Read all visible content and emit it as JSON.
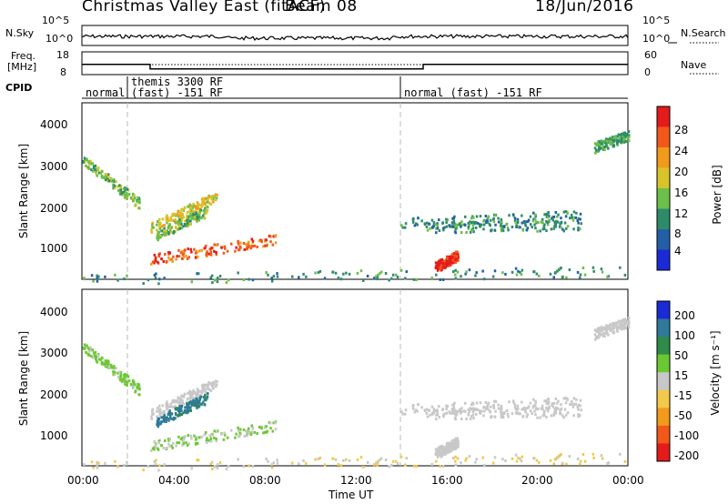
{
  "header": {
    "title": "Christmas Valley East (fitACF)",
    "beam": "Beam 08",
    "date": "18/Jun/2016"
  },
  "top_panels": {
    "nsky_label": "N.Sky",
    "nsky_ticks": [
      "10^5",
      "10^0"
    ],
    "nsearch_label": "N.Search",
    "nsearch_ticks": [
      "10^5",
      "10^0"
    ],
    "freq_label_1": "Freq.",
    "freq_label_2": "[MHz]",
    "freq_ticks": [
      "18",
      "8"
    ],
    "nave_label": "Nave",
    "nave_ticks": [
      "60",
      "0"
    ],
    "cpid_label": "CPID",
    "cpid_segments": [
      {
        "text_1": "normal",
        "text_2": ""
      },
      {
        "text_1": "themis 3300 RF",
        "text_2": "(fast) -151 RF"
      },
      {
        "text_1": "normal (fast) -151 RF",
        "text_2": ""
      }
    ]
  },
  "power_panel": {
    "ylabel": "Slant Range [km]",
    "yticks": [
      "4000",
      "3000",
      "2000",
      "1000"
    ],
    "colorbar_label": "Power [dB]",
    "colorbar_ticks": [
      "28",
      "24",
      "20",
      "16",
      "12",
      "8",
      "4"
    ]
  },
  "velocity_panel": {
    "ylabel": "Slant Range [km]",
    "yticks": [
      "4000",
      "3000",
      "2000",
      "1000"
    ],
    "colorbar_label": "Velocity [m s⁻¹]",
    "colorbar_ticks": [
      "200",
      "100",
      "50",
      "15",
      "-15",
      "-50",
      "-100",
      "-200"
    ]
  },
  "x_axis": {
    "ticks": [
      "00:00",
      "04:00",
      "08:00",
      "12:00",
      "16:00",
      "20:00",
      "00:00"
    ],
    "label": "Time UT"
  },
  "chart_data": {
    "type": "heatmap",
    "title": "Christmas Valley East (fitACF) Beam 08",
    "date": "18/Jun/2016",
    "xlabel": "Time UT",
    "ylabel": "Slant Range [km]",
    "xlim_hours": [
      0,
      24
    ],
    "ylim_km": [
      180,
      4600
    ],
    "frequency_mhz": [
      {
        "start_h": 0,
        "end_h": 3,
        "value": 12.5
      },
      {
        "start_h": 3,
        "end_h": 15,
        "value": 10.5
      },
      {
        "start_h": 15,
        "end_h": 24,
        "value": 12.5
      }
    ],
    "cpid_change_hours": [
      2,
      14
    ],
    "power_colorbar": {
      "label": "Power [dB]",
      "min": 0,
      "max": 32,
      "colors": [
        "#1a2bd6",
        "#235fa6",
        "#2e8b6a",
        "#6bbf4a",
        "#d9c32a",
        "#f29a1c",
        "#f2581a",
        "#e41b1b"
      ]
    },
    "velocity_colorbar": {
      "label": "Velocity [m s-1]",
      "min": -250,
      "max": 250,
      "colors": [
        "#e41b1b",
        "#f2581a",
        "#f29a1c",
        "#f2c94a",
        "#c8c8c8",
        "#6cc832",
        "#2e8b4a",
        "#2f7a9a",
        "#1a2bd6"
      ]
    },
    "scatter_regions": [
      {
        "name": "early_band",
        "t_start": 0.0,
        "t_end": 2.5,
        "r_start": 3200,
        "r_end": 2100,
        "power": 14,
        "velocity": 40
      },
      {
        "name": "arc_upper",
        "t_start": 3.0,
        "t_end": 6.0,
        "r_start": 1500,
        "r_end": 2300,
        "power": 18,
        "velocity": 5
      },
      {
        "name": "blob_main",
        "t_start": 3.0,
        "t_end": 8.5,
        "r_start": 700,
        "r_end": 1200,
        "power": 26,
        "velocity": 30
      },
      {
        "name": "arc_inner",
        "t_start": 3.2,
        "t_end": 5.5,
        "r_start": 1300,
        "r_end": 1900,
        "power": 14,
        "velocity": 150
      },
      {
        "name": "afternoon_band_1",
        "t_start": 14.0,
        "t_end": 22.0,
        "r_start": 1600,
        "r_end": 1800,
        "power": 10,
        "velocity": 0
      },
      {
        "name": "afternoon_band_2",
        "t_start": 15.0,
        "t_end": 22.0,
        "r_start": 1500,
        "r_end": 1550,
        "power": 10,
        "velocity": 0
      },
      {
        "name": "spot_16h",
        "t_start": 15.5,
        "t_end": 16.5,
        "r_start": 500,
        "r_end": 800,
        "power": 30,
        "velocity": 0
      },
      {
        "name": "late_far",
        "t_start": 22.5,
        "t_end": 24.0,
        "r_start": 3500,
        "r_end": 3800,
        "power": 12,
        "velocity": -5
      },
      {
        "name": "near_ground",
        "t_start": 0.0,
        "t_end": 24.0,
        "r_start": 200,
        "r_end": 400,
        "power": 10,
        "velocity": -30
      }
    ]
  }
}
